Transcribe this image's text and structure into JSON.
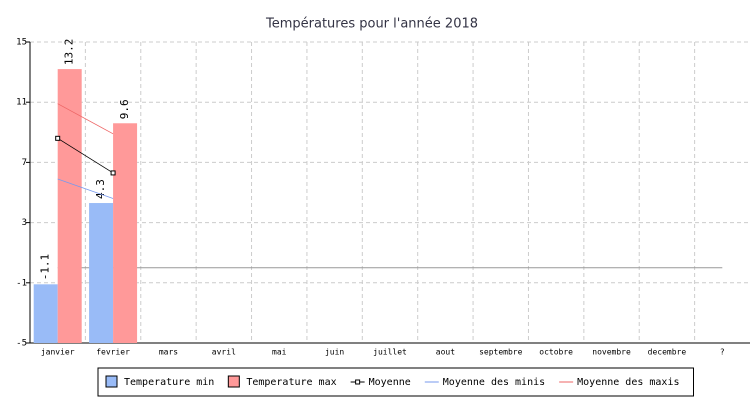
{
  "chart_data": {
    "type": "bar",
    "title": "Températures pour l'année 2018",
    "categories": [
      "janvier",
      "fevrier",
      "mars",
      "avril",
      "mai",
      "juin",
      "juillet",
      "aout",
      "septembre",
      "octobre",
      "novembre",
      "decembre",
      "?"
    ],
    "series": [
      {
        "name": "Temperature min",
        "type": "bar",
        "color": "#99bbf7",
        "values": [
          -1.1,
          4.3,
          null,
          null,
          null,
          null,
          null,
          null,
          null,
          null,
          null,
          null,
          null
        ]
      },
      {
        "name": "Temperature max",
        "type": "bar",
        "color": "#ff9999",
        "values": [
          13.2,
          9.6,
          null,
          null,
          null,
          null,
          null,
          null,
          null,
          null,
          null,
          null,
          null
        ]
      },
      {
        "name": "Moyenne",
        "type": "line",
        "color": "#000000",
        "values": [
          8.6,
          6.3,
          null,
          null,
          null,
          null,
          null,
          null,
          null,
          null,
          null,
          null,
          null
        ]
      },
      {
        "name": "Moyenne des minis",
        "type": "line",
        "color": "#7799ee",
        "values": [
          5.9,
          4.6,
          null,
          null,
          null,
          null,
          null,
          null,
          null,
          null,
          null,
          null,
          null
        ]
      },
      {
        "name": "Moyenne des maxis",
        "type": "line",
        "color": "#ee6666",
        "values": [
          10.9,
          8.9,
          null,
          null,
          null,
          null,
          null,
          null,
          null,
          null,
          null,
          null,
          null
        ]
      }
    ],
    "ylim": [
      -5,
      15
    ],
    "yticks": [
      -5,
      -1,
      3,
      7,
      11,
      15
    ],
    "grid": true
  }
}
